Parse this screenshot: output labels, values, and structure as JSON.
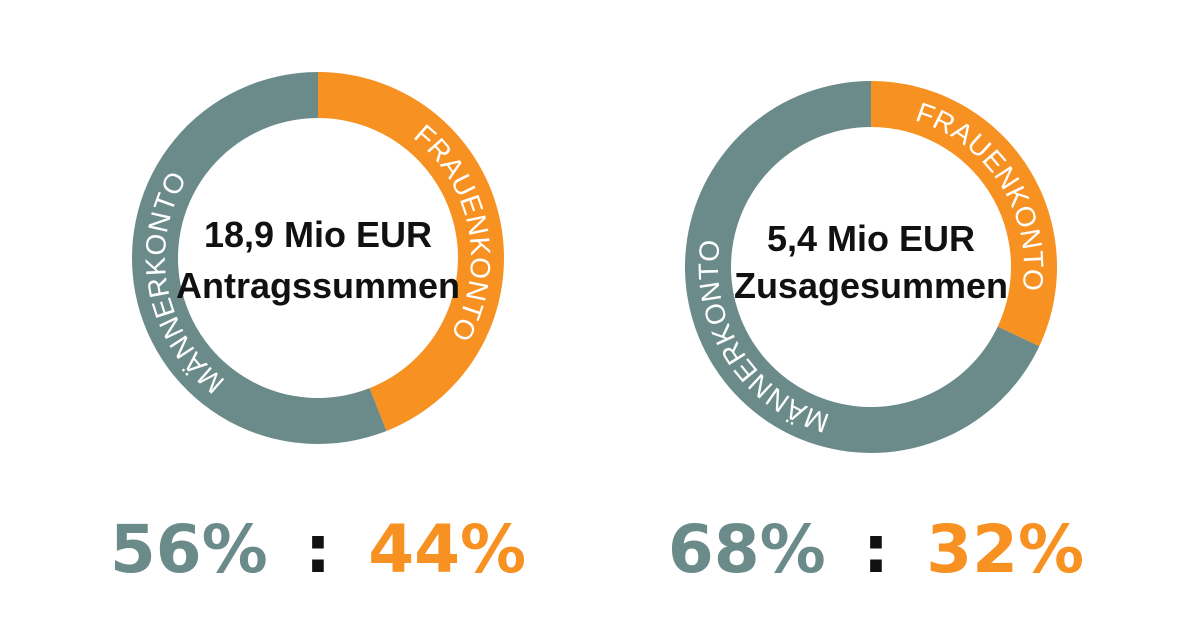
{
  "colors": {
    "maenner": "#6b8b8a",
    "frauen": "#f79121",
    "text": "#111111",
    "background": "#ffffff"
  },
  "chart_data": [
    {
      "type": "pie",
      "style": "donut",
      "center_value": "18,9 Mio EUR",
      "center_label": "Antragssummen",
      "slices": [
        {
          "label": "FRAUENKONTO",
          "value": 44,
          "color": "#f79121"
        },
        {
          "label": "MÄNNERKONTO",
          "value": 56,
          "color": "#6b8b8a"
        }
      ],
      "ratio": {
        "left": "56%",
        "separator": ":",
        "right": "44%"
      }
    },
    {
      "type": "pie",
      "style": "donut",
      "center_value": "5,4 Mio EUR",
      "center_label": "Zusagesummen",
      "slices": [
        {
          "label": "FRAUENKONTO",
          "value": 32,
          "color": "#f79121"
        },
        {
          "label": "MÄNNERKONTO",
          "value": 68,
          "color": "#6b8b8a"
        }
      ],
      "ratio": {
        "left": "68%",
        "separator": ":",
        "right": "32%"
      }
    }
  ]
}
